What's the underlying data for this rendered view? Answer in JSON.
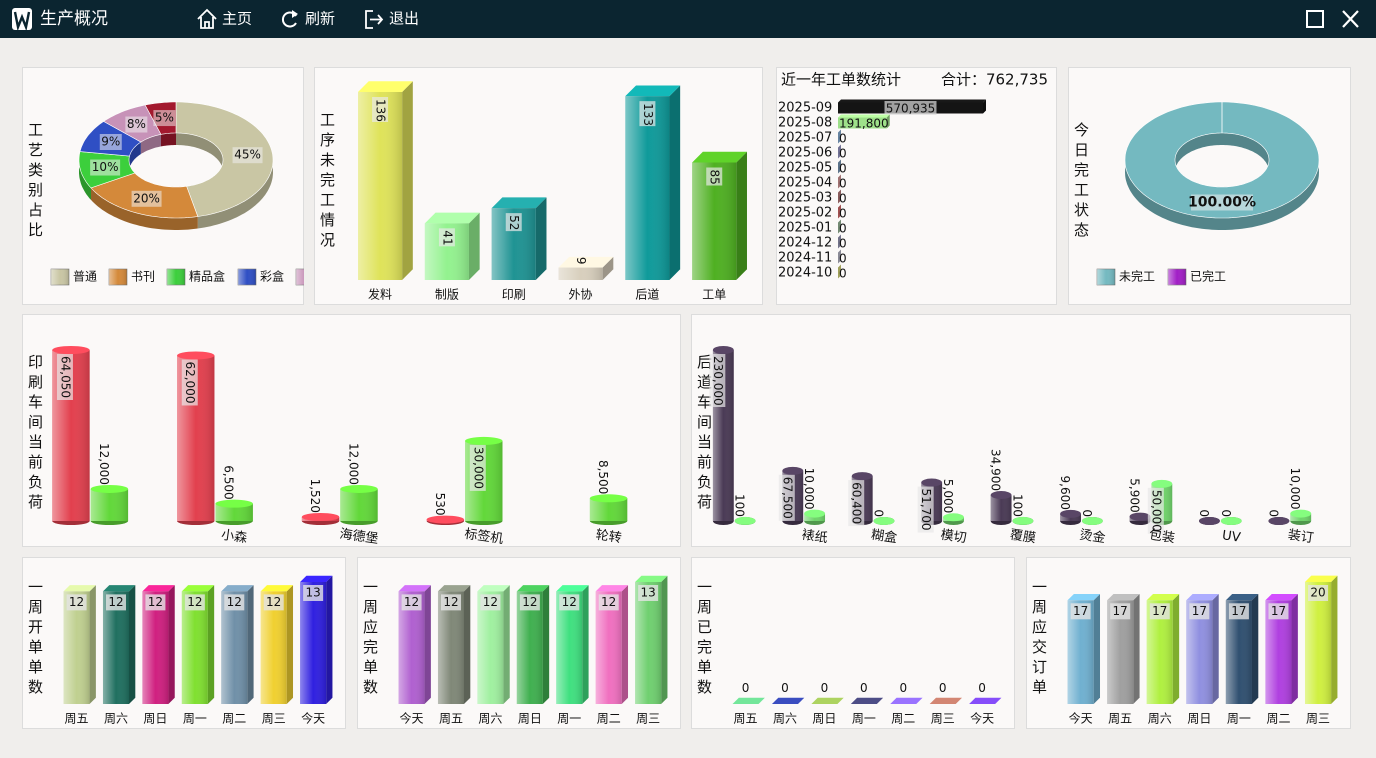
{
  "header": {
    "title": "生产概况",
    "nav": [
      "主页",
      "刷新",
      "退出"
    ]
  },
  "chart_data": [
    {
      "type": "donut",
      "title": "工艺类别占比",
      "categories": [
        "普通",
        "书刊",
        "精品盒",
        "彩盒",
        null,
        null
      ],
      "values": [
        45,
        20,
        10,
        9,
        8,
        5
      ],
      "value_labels": [
        "45%",
        "20%",
        "10%",
        "9%",
        "8%",
        "5%"
      ],
      "colors": [
        "#c9c6a4",
        "#d4893a",
        "#3ccf3c",
        "#2f4fc4",
        "#c792b8",
        "#a3192e"
      ]
    },
    {
      "type": "bar",
      "title": "工序未完工情况",
      "categories": [
        "发料",
        "制版",
        "印刷",
        "外协",
        "后道",
        "工单"
      ],
      "values": [
        136,
        41,
        52,
        9,
        133,
        85
      ],
      "colors": [
        "#dfe35a",
        "#93f28f",
        "#1f9393",
        "#d8cfbd",
        "#0f9a9a",
        "#4fb022"
      ]
    },
    {
      "type": "barh",
      "title": "近一年工单数统计",
      "subtitle": "合计：762,735",
      "categories": [
        "2025-09",
        "2025-08",
        "2025-07",
        "2025-06",
        "2025-05",
        "2025-04",
        "2025-03",
        "2025-02",
        "2025-01",
        "2024-12",
        "2024-11",
        "2024-10"
      ],
      "values": [
        570935,
        191800,
        0,
        0,
        0,
        0,
        0,
        0,
        0,
        0,
        0,
        0
      ],
      "value_labels": [
        "570,935",
        "191,800",
        "0",
        "0",
        "0",
        "0",
        "0",
        "0",
        "0",
        "0",
        "0",
        "0"
      ],
      "colors": [
        "#141414",
        "#9ee08a",
        "#8fb8e0",
        "#a0a0d0",
        "#80a0c0",
        "#e0a0a0",
        "#c08080",
        "#e07070",
        "#a0c0a0",
        "#a0a0c0",
        "#c0c0d0",
        "#e0e080"
      ]
    },
    {
      "type": "donut",
      "title": "今日完工状态",
      "categories": [
        "未完工",
        "已完工"
      ],
      "values": [
        100,
        0
      ],
      "value_labels": [
        "100.00%",
        null
      ],
      "colors": [
        "#74b9c0",
        "#a21fc6"
      ]
    },
    {
      "type": "cylinder",
      "title": "印刷车间当前负荷",
      "categories": [
        null,
        "小森",
        "海德堡",
        "标签机",
        "轮转"
      ],
      "series": [
        {
          "color": "#e2404e",
          "values": [
            64050,
            62000,
            1520,
            530,
            null
          ],
          "value_labels": [
            "64,050",
            "62,000",
            "1,520",
            "530",
            null
          ]
        },
        {
          "color": "#62d83a",
          "values": [
            12000,
            6500,
            12000,
            30000,
            8500
          ],
          "value_labels": [
            "12,000",
            "6,500",
            "12,000",
            "30,000",
            "8,500"
          ]
        }
      ]
    },
    {
      "type": "cylinder",
      "title": "后道车间当前负荷",
      "categories": [
        null,
        "裱纸",
        "糊盒",
        "模切",
        "覆膜",
        "烫金",
        "包装",
        "UV",
        "装订"
      ],
      "series": [
        {
          "color": "#4a3a55",
          "values": [
            230000,
            67500,
            60400,
            51700,
            34900,
            9600,
            5900,
            0,
            0
          ],
          "value_labels": [
            "230,000",
            "67,500",
            "60,400",
            "51,700",
            "34,900",
            "9,600",
            "5,900",
            "0",
            "0"
          ]
        },
        {
          "color": "#6fd36a",
          "values": [
            100,
            10000,
            0,
            5000,
            100,
            0,
            50000,
            0,
            10000
          ],
          "value_labels": [
            "100",
            "10,000",
            "0",
            "5,000",
            "100",
            "0",
            "50,000",
            "0",
            "10,000"
          ]
        }
      ]
    },
    {
      "type": "bar",
      "title": "一周开单单数",
      "categories": [
        "周五",
        "周六",
        "周日",
        "周一",
        "周二",
        "周三",
        "今天"
      ],
      "values": [
        12,
        12,
        12,
        12,
        12,
        12,
        13
      ],
      "colors": [
        "#c0d090",
        "#207060",
        "#d02080",
        "#80e030",
        "#7090a8",
        "#f0d030",
        "#3020e0"
      ]
    },
    {
      "type": "bar",
      "title": "一周应完单数",
      "categories": [
        "今天",
        "周五",
        "周六",
        "周日",
        "周一",
        "周二",
        "周三"
      ],
      "values": [
        12,
        12,
        12,
        12,
        12,
        12,
        13
      ],
      "colors": [
        "#b060d0",
        "#808878",
        "#a0f0a0",
        "#40b050",
        "#40e080",
        "#f070c0",
        "#70d070"
      ]
    },
    {
      "type": "bar",
      "title": "一周已完单数",
      "categories": [
        "周五",
        "周六",
        "周日",
        "周一",
        "周二",
        "周三",
        "今天"
      ],
      "values": [
        0,
        0,
        0,
        0,
        0,
        0,
        0
      ],
      "colors": [
        "#60c080",
        "#3040a0",
        "#90b050",
        "#404070",
        "#8060e0",
        "#b07060",
        "#7040d0"
      ]
    },
    {
      "type": "bar",
      "title": "一周应交订单",
      "categories": [
        "今天",
        "周五",
        "周六",
        "周日",
        "周一",
        "周二",
        "周三"
      ],
      "values": [
        17,
        17,
        17,
        17,
        17,
        17,
        20
      ],
      "colors": [
        "#70b0d0",
        "#a0a0a0",
        "#b0f040",
        "#9090e0",
        "#305070",
        "#b040e0",
        "#d0f040"
      ]
    }
  ]
}
